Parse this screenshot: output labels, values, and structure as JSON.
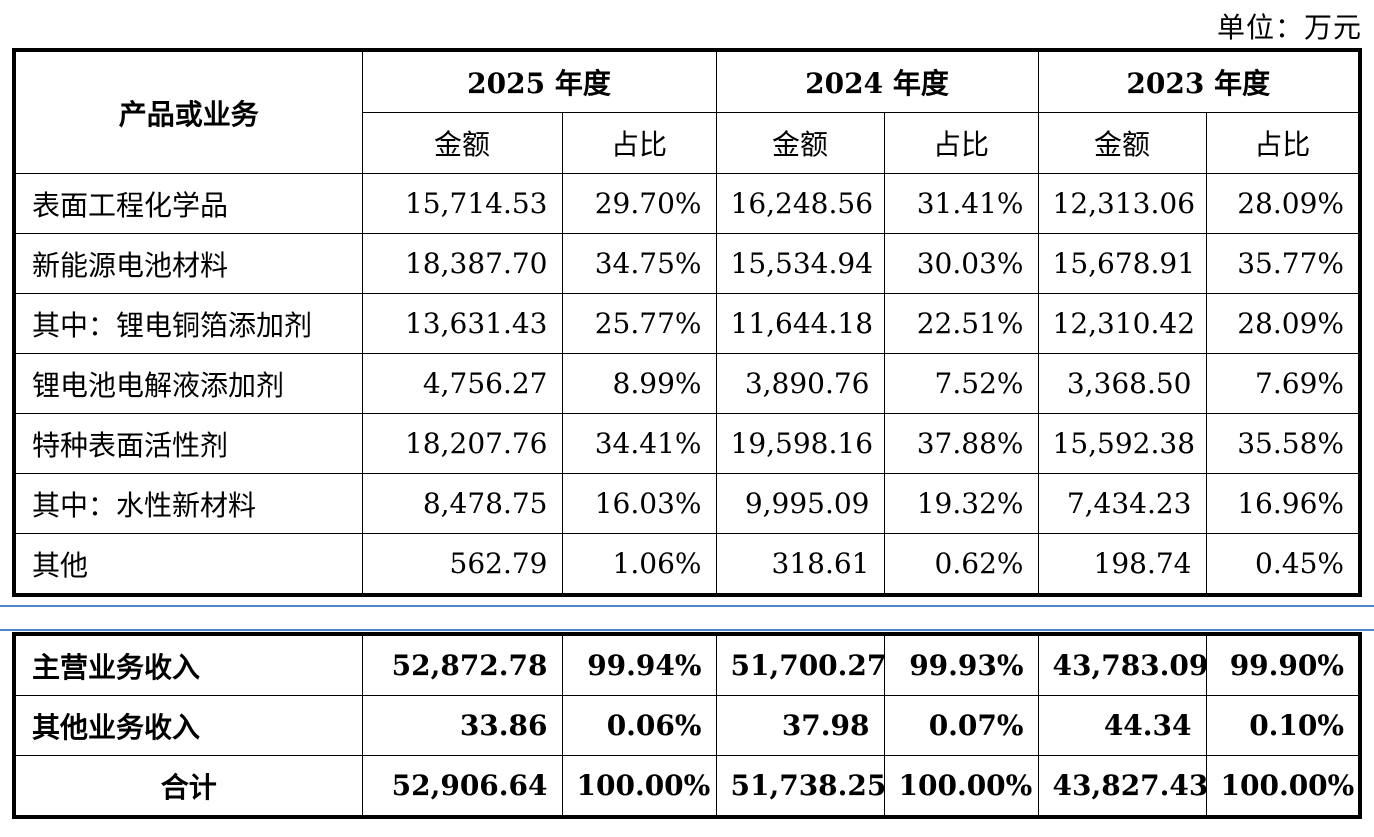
{
  "unit_label": "单位：万元",
  "header": {
    "product_col": "产品或业务",
    "years": [
      "2025 年度",
      "2024 年度",
      "2023 年度"
    ],
    "amount": "金额",
    "ratio": "占比"
  },
  "rows": [
    {
      "name": "表面工程化学品",
      "v": [
        "15,714.53",
        "29.70%",
        "16,248.56",
        "31.41%",
        "12,313.06",
        "28.09%"
      ]
    },
    {
      "name": "新能源电池材料",
      "v": [
        "18,387.70",
        "34.75%",
        "15,534.94",
        "30.03%",
        "15,678.91",
        "35.77%"
      ]
    },
    {
      "name": "其中：锂电铜箔添加剂",
      "v": [
        "13,631.43",
        "25.77%",
        "11,644.18",
        "22.51%",
        "12,310.42",
        "28.09%"
      ]
    },
    {
      "name": "锂电池电解液添加剂",
      "v": [
        "4,756.27",
        "8.99%",
        "3,890.76",
        "7.52%",
        "3,368.50",
        "7.69%"
      ]
    },
    {
      "name": "特种表面活性剂",
      "v": [
        "18,207.76",
        "34.41%",
        "19,598.16",
        "37.88%",
        "15,592.38",
        "35.58%"
      ]
    },
    {
      "name": "其中：水性新材料",
      "v": [
        "8,478.75",
        "16.03%",
        "9,995.09",
        "19.32%",
        "7,434.23",
        "16.96%"
      ]
    },
    {
      "name": "其他",
      "v": [
        "562.79",
        "1.06%",
        "318.61",
        "0.62%",
        "198.74",
        "0.45%"
      ]
    }
  ],
  "summary_rows": [
    {
      "name": "主营业务收入",
      "v": [
        "52,872.78",
        "99.94%",
        "51,700.27",
        "99.93%",
        "43,783.09",
        "99.90%"
      ]
    },
    {
      "name": "其他业务收入",
      "v": [
        "33.86",
        "0.06%",
        "37.98",
        "0.07%",
        "44.34",
        "0.10%"
      ]
    },
    {
      "name": "合计",
      "v": [
        "52,906.64",
        "100.00%",
        "51,738.25",
        "100.00%",
        "43,827.43",
        "100.00%"
      ]
    }
  ],
  "colors": {
    "separator": "#4a86c8",
    "border": "#000000"
  }
}
